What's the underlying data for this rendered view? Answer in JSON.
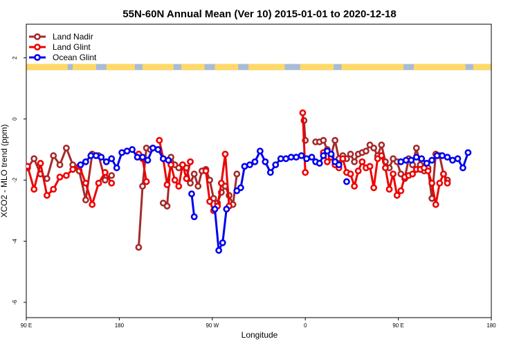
{
  "chart_data": {
    "type": "line",
    "title": "55N-60N Annual Mean (Ver 10)   2015-01-01 to 2020-12-18",
    "xlabel": "Longitude",
    "ylabel": "XCO2 - MLO trend (ppm)",
    "xlim": [
      -180,
      180
    ],
    "ylim": [
      -6.5,
      3.1
    ],
    "x_ticks": [
      {
        "value": -180,
        "label": "90 E"
      },
      {
        "value": -108,
        "label": "180"
      },
      {
        "value": -36,
        "label": "90 W"
      },
      {
        "value": 36,
        "label": "0"
      },
      {
        "value": 108,
        "label": "90 E"
      },
      {
        "value": 180,
        "label": "180"
      }
    ],
    "y_ticks": [
      {
        "value": 2,
        "label": "2"
      },
      {
        "value": 0,
        "label": "0"
      },
      {
        "value": -2,
        "label": "-2"
      },
      {
        "value": -4,
        "label": "-4"
      },
      {
        "value": -6,
        "label": "-6"
      }
    ],
    "legend": {
      "position": "top-left"
    },
    "land_mask_band": {
      "y_range": [
        1.6,
        1.8
      ],
      "land_color": "#ffd966",
      "ocean_color": "#a9bcd6"
    },
    "series": [
      {
        "name": "Land Nadir",
        "color": "#a52a2a",
        "points": [
          [
            -179,
            -1.6
          ],
          [
            -174,
            -1.3
          ],
          [
            -169,
            -1.8
          ],
          [
            -164,
            -1.95
          ],
          [
            -159,
            -1.2
          ],
          [
            -154,
            -1.5
          ],
          [
            -149,
            -0.95
          ],
          [
            -144,
            -1.5
          ],
          [
            -139,
            -1.7
          ],
          [
            -134,
            -2.65
          ],
          [
            -129,
            -1.15
          ],
          [
            -124,
            -1.2
          ],
          [
            -119,
            -2.0
          ],
          [
            -114,
            -1.85
          ],
          null,
          [
            -93,
            -4.2
          ],
          [
            -90,
            -2.2
          ],
          [
            -87,
            -0.95
          ],
          [
            -84,
            -1.0
          ],
          null,
          [
            -74,
            -2.75
          ],
          [
            -71,
            -2.85
          ],
          [
            -68,
            -1.25
          ],
          [
            -65,
            -1.5
          ],
          [
            -62,
            -1.6
          ],
          [
            -59,
            -1.5
          ],
          [
            -56,
            -1.6
          ],
          [
            -53,
            -2.1
          ],
          [
            -50,
            -1.8
          ],
          [
            -47,
            -2.2
          ],
          [
            -44,
            -1.7
          ],
          [
            -41,
            -1.65
          ],
          [
            -38,
            -2.0
          ],
          [
            -35,
            -2.6
          ],
          [
            -32,
            -2.75
          ],
          [
            -29,
            -2.4
          ],
          [
            -26,
            -2.2
          ],
          [
            -23,
            -2.5
          ],
          [
            -20,
            -2.8
          ],
          [
            -17,
            -1.8
          ],
          null,
          [
            35,
            -0.05
          ],
          [
            36,
            -0.7
          ],
          null,
          [
            44,
            -0.75
          ],
          [
            47,
            -0.75
          ],
          [
            50,
            -0.7
          ],
          [
            53,
            -1.0
          ],
          [
            56,
            -1.2
          ],
          [
            59,
            -0.7
          ],
          [
            62,
            -1.3
          ],
          [
            65,
            -1.2
          ],
          [
            68,
            -1.3
          ],
          [
            71,
            -1.15
          ],
          [
            74,
            -1.4
          ],
          [
            77,
            -1.15
          ],
          [
            80,
            -1.1
          ],
          [
            83,
            -1.05
          ],
          [
            86,
            -0.85
          ],
          [
            89,
            -0.95
          ],
          [
            92,
            -1.2
          ],
          [
            95,
            -0.85
          ],
          [
            98,
            -1.4
          ],
          [
            101,
            -1.6
          ],
          [
            104,
            -1.3
          ],
          [
            107,
            -1.4
          ],
          [
            110,
            -1.8
          ],
          [
            113,
            -1.95
          ],
          [
            116,
            -1.3
          ],
          [
            119,
            -1.5
          ],
          [
            122,
            -0.95
          ],
          [
            125,
            -1.5
          ],
          [
            128,
            -1.7
          ],
          [
            131,
            -1.6
          ],
          [
            134,
            -2.6
          ],
          [
            137,
            -1.15
          ],
          [
            140,
            -1.2
          ],
          [
            143,
            -1.8
          ],
          [
            146,
            -2.0
          ]
        ]
      },
      {
        "name": "Land Glint",
        "color": "#ee0000",
        "points": [
          [
            -179,
            -1.55
          ],
          [
            -174,
            -2.3
          ],
          [
            -169,
            -1.45
          ],
          [
            -164,
            -2.5
          ],
          [
            -159,
            -2.3
          ],
          [
            -154,
            -1.9
          ],
          [
            -149,
            -1.85
          ],
          [
            -144,
            -1.65
          ],
          [
            -139,
            -1.55
          ],
          [
            -134,
            -2.1
          ],
          [
            -129,
            -2.8
          ],
          [
            -124,
            -2.1
          ],
          [
            -119,
            -1.75
          ],
          [
            -114,
            -2.1
          ],
          null,
          [
            -93,
            -1.15
          ],
          [
            -90,
            -1.3
          ],
          [
            -87,
            -2.05
          ],
          null,
          [
            -77,
            -0.7
          ],
          [
            -74,
            -1.3
          ],
          [
            -71,
            -2.15
          ],
          [
            -68,
            -1.5
          ],
          [
            -65,
            -2.0
          ],
          [
            -62,
            -2.2
          ],
          [
            -59,
            -1.5
          ],
          [
            -56,
            -1.95
          ],
          [
            -53,
            -1.4
          ],
          null,
          [
            -41,
            -1.7
          ],
          [
            -38,
            -2.7
          ],
          [
            -35,
            -3.0
          ],
          [
            -32,
            -2.85
          ],
          [
            -29,
            -2.1
          ],
          [
            -26,
            -1.15
          ],
          [
            -23,
            -2.85
          ],
          null,
          [
            34,
            0.2
          ],
          [
            36,
            -1.75
          ],
          null,
          [
            50,
            -1.1
          ],
          [
            53,
            -1.4
          ],
          [
            56,
            -1.25
          ],
          [
            59,
            -1.5
          ],
          [
            62,
            -1.6
          ],
          [
            65,
            -1.3
          ],
          [
            68,
            -1.75
          ],
          [
            71,
            -1.8
          ],
          [
            74,
            -2.2
          ],
          [
            77,
            -1.7
          ],
          [
            80,
            -1.4
          ],
          [
            83,
            -1.6
          ],
          [
            86,
            -1.55
          ],
          [
            89,
            -2.25
          ],
          [
            92,
            -1.3
          ],
          [
            95,
            -1.2
          ],
          [
            98,
            -1.6
          ],
          [
            101,
            -2.3
          ],
          [
            104,
            -1.8
          ],
          [
            107,
            -2.5
          ],
          [
            110,
            -2.35
          ],
          [
            113,
            -1.9
          ],
          [
            116,
            -1.85
          ],
          [
            119,
            -1.8
          ],
          [
            122,
            -1.65
          ],
          [
            125,
            -1.65
          ],
          [
            128,
            -1.6
          ],
          [
            131,
            -1.7
          ],
          [
            134,
            -2.1
          ],
          [
            137,
            -2.8
          ],
          [
            140,
            -2.1
          ],
          [
            143,
            -1.8
          ],
          [
            146,
            -2.1
          ]
        ]
      },
      {
        "name": "Ocean Glint",
        "color": "#0000ee",
        "points": [
          [
            -138,
            -1.5
          ],
          [
            -134,
            -1.4
          ],
          [
            -130,
            -1.2
          ],
          [
            -126,
            -1.2
          ],
          [
            -122,
            -1.25
          ],
          [
            -118,
            -1.4
          ],
          [
            -114,
            -1.3
          ],
          [
            -110,
            -1.6
          ],
          [
            -106,
            -1.1
          ],
          [
            -102,
            -1.05
          ],
          [
            -98,
            -1.0
          ],
          [
            -94,
            -1.25
          ],
          [
            -90,
            -1.25
          ],
          [
            -86,
            -1.35
          ],
          [
            -82,
            -0.95
          ],
          [
            -78,
            -1.0
          ],
          [
            -74,
            -1.3
          ],
          [
            -70,
            -1.35
          ],
          null,
          [
            -52,
            -2.45
          ],
          [
            -50,
            -3.2
          ],
          null,
          [
            -34,
            -2.95
          ],
          [
            -31,
            -4.3
          ],
          [
            -28,
            -4.05
          ],
          [
            -25,
            -2.95
          ],
          null,
          [
            -17,
            -2.35
          ],
          [
            -14,
            -2.25
          ],
          [
            -11,
            -1.55
          ],
          [
            -7,
            -1.5
          ],
          [
            -3,
            -1.4
          ],
          [
            1,
            -1.05
          ],
          [
            5,
            -1.4
          ],
          [
            9,
            -1.75
          ],
          [
            13,
            -1.5
          ],
          [
            17,
            -1.3
          ],
          [
            21,
            -1.3
          ],
          [
            25,
            -1.25
          ],
          [
            29,
            -1.25
          ],
          [
            33,
            -1.2
          ],
          [
            37,
            -1.3
          ],
          [
            41,
            -1.25
          ],
          [
            44,
            -1.4
          ],
          [
            47,
            -1.45
          ],
          [
            50,
            -1.2
          ],
          [
            53,
            -1.05
          ],
          [
            56,
            -1.15
          ],
          [
            59,
            -1.4
          ],
          [
            62,
            -1.5
          ],
          null,
          [
            68,
            -2.05
          ],
          null,
          [
            110,
            -1.4
          ],
          [
            114,
            -1.35
          ],
          [
            118,
            -1.35
          ],
          [
            122,
            -1.25
          ],
          [
            126,
            -1.3
          ],
          [
            130,
            -1.45
          ],
          [
            134,
            -1.35
          ],
          [
            138,
            -1.2
          ],
          [
            142,
            -1.2
          ],
          [
            146,
            -1.25
          ],
          [
            150,
            -1.35
          ],
          [
            154,
            -1.3
          ],
          [
            158,
            -1.6
          ],
          [
            162,
            -1.1
          ]
        ]
      }
    ]
  }
}
